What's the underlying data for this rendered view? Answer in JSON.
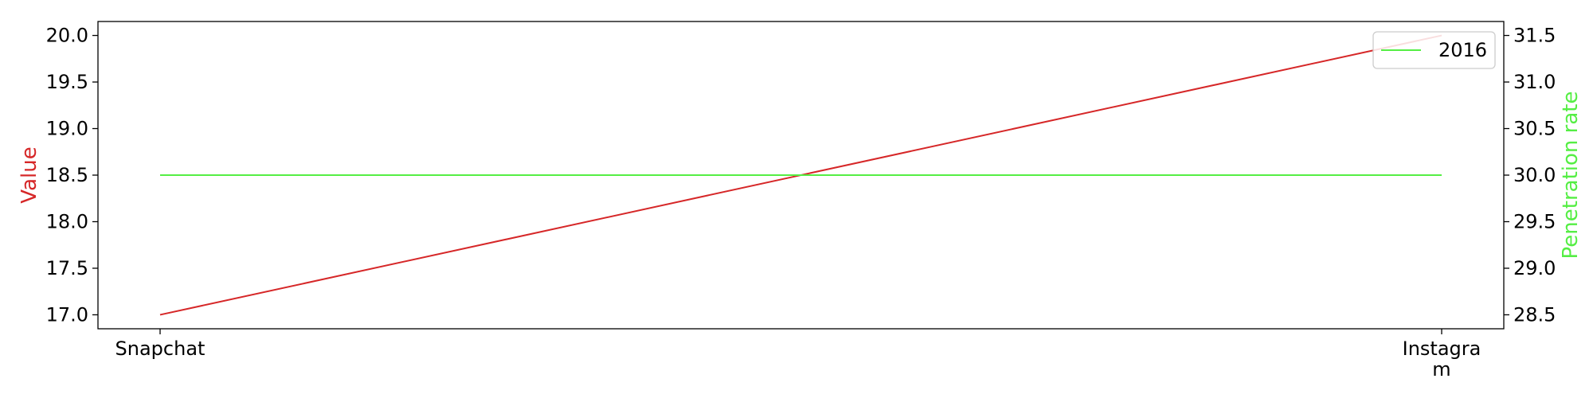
{
  "chart_data": {
    "type": "line",
    "categories": [
      "Snapchat",
      "Instagram"
    ],
    "x_tick_lines": [
      [
        "Snapchat"
      ],
      [
        "Instagra",
        "m"
      ]
    ],
    "left_axis": {
      "label": "Value",
      "color": "#d62728",
      "ylim": [
        16.85,
        20.15
      ],
      "ticks": [
        "17.0",
        "17.5",
        "18.0",
        "18.5",
        "19.0",
        "19.5",
        "20.0"
      ]
    },
    "right_axis": {
      "label": "Penetration rate",
      "color": "#55ee44",
      "ylim": [
        28.35,
        31.65
      ],
      "ticks": [
        "28.5",
        "29.0",
        "29.5",
        "30.0",
        "30.5",
        "31.0",
        "31.5"
      ]
    },
    "series": [
      {
        "axis": "left",
        "color": "#d62728",
        "values": [
          17.0,
          20.0
        ]
      },
      {
        "name": "2016",
        "axis": "right",
        "color": "#55ee44",
        "values": [
          30.0,
          30.0
        ]
      }
    ],
    "legend": {
      "position": "top-right",
      "entries": [
        "2016"
      ]
    },
    "grid": false
  }
}
